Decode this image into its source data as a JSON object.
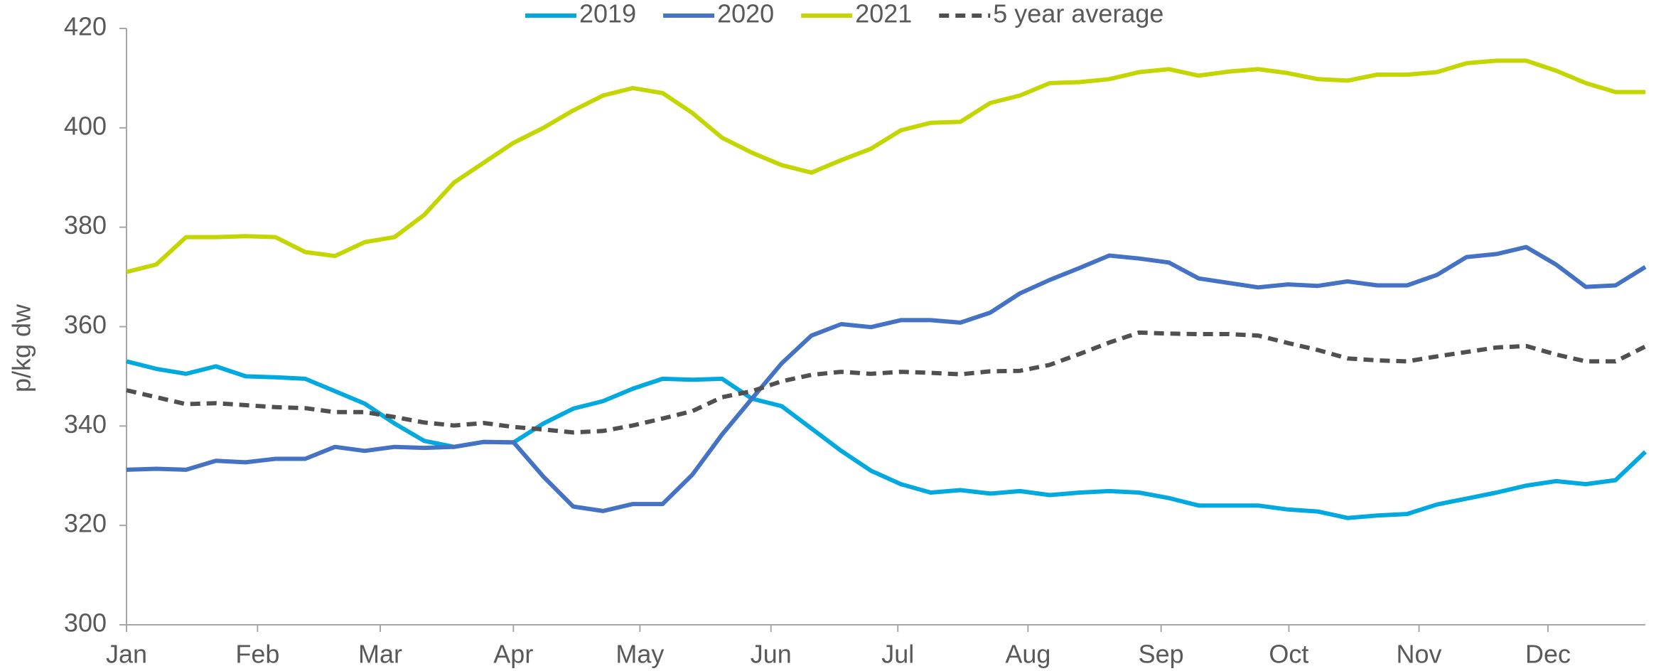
{
  "chart_data": {
    "type": "line",
    "y_label": "p/kg dw",
    "x": [
      1,
      2,
      3,
      4,
      5,
      6,
      7,
      8,
      9,
      10,
      11,
      12,
      13,
      14,
      15,
      16,
      17,
      18,
      19,
      20,
      21,
      22,
      23,
      24,
      25,
      26,
      27,
      28,
      29,
      30,
      31,
      32,
      33,
      34,
      35,
      36,
      37,
      38,
      39,
      40,
      41,
      42,
      43,
      44,
      45,
      46,
      47,
      48,
      49,
      50,
      51,
      52
    ],
    "xlim": [
      1,
      52
    ],
    "xticks": [
      {
        "value": 1,
        "label": "Jan"
      },
      {
        "value": 5.4,
        "label": "Feb"
      },
      {
        "value": 9.52,
        "label": "Mar"
      },
      {
        "value": 13.99,
        "label": "Apr"
      },
      {
        "value": 18.24,
        "label": "May"
      },
      {
        "value": 22.64,
        "label": "Jun"
      },
      {
        "value": 26.9,
        "label": "Jul"
      },
      {
        "value": 31.27,
        "label": "Aug"
      },
      {
        "value": 35.74,
        "label": "Sep"
      },
      {
        "value": 40.03,
        "label": "Oct"
      },
      {
        "value": 44.4,
        "label": "Nov"
      },
      {
        "value": 48.73,
        "label": "Dec"
      }
    ],
    "ylim": [
      300,
      420
    ],
    "yticks": [
      300,
      320,
      340,
      360,
      380,
      400,
      420
    ],
    "grid": false,
    "legend": "top",
    "series": [
      {
        "name": "2019",
        "color": "#00a9e0",
        "dashed": false,
        "values": [
          353,
          351.5,
          350.5,
          352,
          350,
          349.8,
          349.5,
          347,
          344.5,
          340.5,
          337,
          335.8,
          336.8,
          336.7,
          340.5,
          343.5,
          345,
          347.5,
          349.5,
          349.3,
          349.5,
          345.5,
          344,
          339.5,
          335,
          331,
          328.3,
          326.6,
          327.1,
          326.4,
          326.9,
          326.1,
          326.6,
          326.9,
          326.6,
          325.5,
          324,
          324,
          324,
          323.2,
          322.8,
          321.5,
          322,
          322.3,
          324.2,
          325.4,
          326.6,
          328,
          328.9,
          328.3,
          329.1,
          334.8
        ]
      },
      {
        "name": "2020",
        "color": "#4472c4",
        "dashed": false,
        "values": [
          331.2,
          331.4,
          331.2,
          333,
          332.7,
          333.4,
          333.4,
          335.8,
          335,
          335.8,
          335.6,
          335.8,
          336.8,
          336.7,
          329.8,
          323.8,
          322.9,
          324.3,
          324.3,
          330.2,
          338.3,
          345.5,
          352.6,
          358.2,
          360.5,
          359.9,
          361.3,
          361.3,
          360.8,
          362.8,
          366.7,
          369.4,
          371.8,
          374.3,
          373.7,
          372.9,
          369.7,
          368.8,
          367.9,
          368.5,
          368.2,
          369.1,
          368.3,
          368.3,
          370.4,
          374,
          374.6,
          376,
          372.5,
          368,
          368.3,
          372
        ]
      },
      {
        "name": "2021",
        "color": "#c4d600",
        "dashed": false,
        "values": [
          371,
          372.5,
          378,
          378,
          378.2,
          378,
          375,
          374.2,
          377,
          378,
          382.5,
          389,
          393,
          397,
          400,
          403.5,
          406.5,
          408,
          407,
          403,
          398,
          395,
          392.5,
          391,
          393.5,
          395.8,
          399.5,
          401,
          401.2,
          405,
          406.5,
          409,
          409.2,
          409.8,
          411.2,
          411.8,
          410.5,
          411.3,
          411.8,
          411,
          409.8,
          409.5,
          410.7,
          410.7,
          411.2,
          413,
          413.5,
          413.5,
          411.5,
          409,
          407.2,
          407.2
        ]
      },
      {
        "name": "5 year average",
        "color": "#505050",
        "dashed": true,
        "values": [
          347.2,
          345.8,
          344.4,
          344.6,
          344.2,
          343.8,
          343.6,
          342.8,
          342.8,
          341.8,
          340.7,
          340.1,
          340.6,
          339.8,
          339.3,
          338.7,
          339,
          340.1,
          341.5,
          343,
          345.8,
          347,
          349,
          350.3,
          350.9,
          350.5,
          350.9,
          350.7,
          350.4,
          351,
          351.1,
          352.3,
          354.5,
          356.8,
          358.8,
          358.6,
          358.5,
          358.5,
          358.2,
          356.7,
          355.3,
          353.6,
          353.2,
          353,
          354,
          354.9,
          355.8,
          356.1,
          354.4,
          353,
          353,
          356
        ]
      }
    ]
  }
}
